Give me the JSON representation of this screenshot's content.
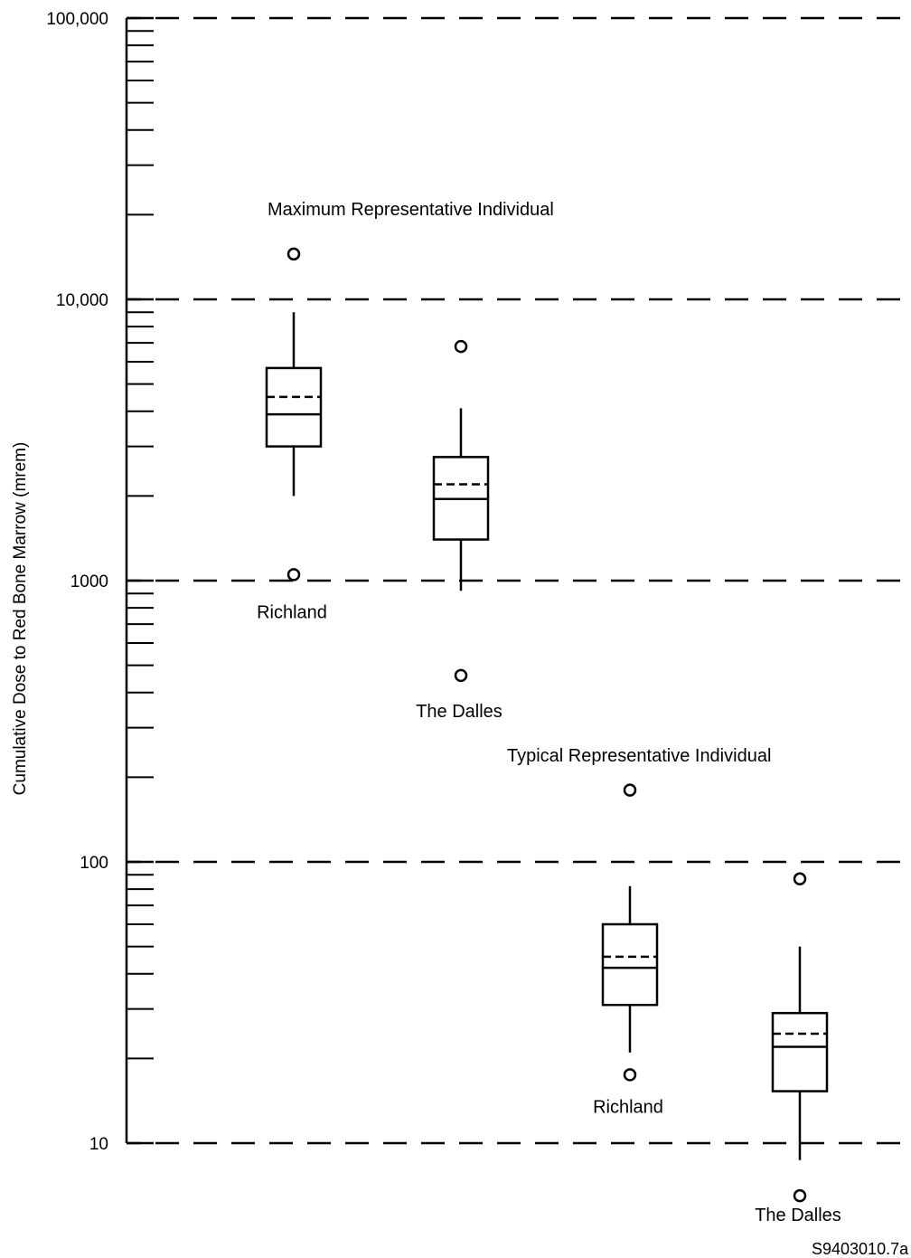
{
  "chart_data": {
    "type": "box",
    "ylabel": "Cumulative Dose to Red Bone Marrow (mrem)",
    "yscale": "log",
    "ylim": [
      10,
      100000
    ],
    "yticks": [
      {
        "value": 10,
        "label": "10"
      },
      {
        "value": 100,
        "label": "100"
      },
      {
        "value": 1000,
        "label": "1000"
      },
      {
        "value": 10000,
        "label": "10,000"
      },
      {
        "value": 100000,
        "label": "100,000"
      }
    ],
    "dashed_gridlines_at": [
      10,
      100,
      1000,
      10000,
      100000
    ],
    "groups": [
      {
        "label": "Maximum Representative Individual"
      },
      {
        "label": "Typical Representative Individual"
      }
    ],
    "boxes": [
      {
        "group": 0,
        "label": "Richland",
        "whisker_low": 2000,
        "q1": 3000,
        "median": 3900,
        "mean": 4500,
        "q3": 5700,
        "whisker_high": 9000,
        "outlier_low": 1050,
        "outlier_high": 14500
      },
      {
        "group": 0,
        "label": "The Dalles",
        "whisker_low": 920,
        "q1": 1400,
        "median": 1950,
        "mean": 2200,
        "q3": 2750,
        "whisker_high": 4100,
        "outlier_low": 460,
        "outlier_high": 6800
      },
      {
        "group": 1,
        "label": "Richland",
        "whisker_low": 21,
        "q1": 31,
        "median": 42,
        "mean": 46,
        "q3": 60,
        "whisker_high": 82,
        "outlier_low": 17.5,
        "outlier_high": 180
      },
      {
        "group": 1,
        "label": "The Dalles",
        "whisker_low": 8.7,
        "q1": 15.3,
        "median": 22,
        "mean": 24.5,
        "q3": 29,
        "whisker_high": 50,
        "outlier_low": 6.5,
        "outlier_high": 87
      }
    ],
    "figure_id": "S9403010.7a",
    "legend": "none",
    "grid": "dashed horizontal lines at decades"
  }
}
